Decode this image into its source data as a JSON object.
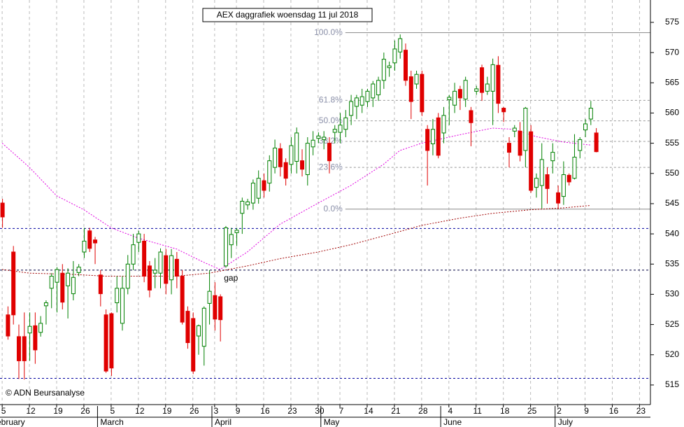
{
  "chart_data": {
    "type": "candlestick",
    "title": "AEX daggrafiek woensdag 11 jul 2018",
    "credit": "© ADN Beursanalyse",
    "annotation": {
      "label": "gap",
      "x": 42,
      "y": 532.6
    },
    "up_color": "#008000",
    "down_color": "#e00000",
    "ylim": [
      511.75,
      578.7
    ],
    "yticks": [
      515,
      520,
      525,
      530,
      535,
      540,
      545,
      550,
      555,
      560,
      565,
      570,
      575
    ],
    "xlim": [
      -0.4,
      119
    ],
    "xticks": [
      {
        "value": 0,
        "label": "5"
      },
      {
        "value": 5,
        "label": "12"
      },
      {
        "value": 10,
        "label": "19"
      },
      {
        "value": 15,
        "label": "26"
      },
      {
        "value": 20,
        "label": "5"
      },
      {
        "value": 25,
        "label": "12"
      },
      {
        "value": 30,
        "label": "19"
      },
      {
        "value": 35,
        "label": "26"
      },
      {
        "value": 39,
        "label": "3"
      },
      {
        "value": 43,
        "label": "9"
      },
      {
        "value": 48,
        "label": "16"
      },
      {
        "value": 53,
        "label": "23"
      },
      {
        "value": 58,
        "label": "30"
      },
      {
        "value": 62,
        "label": "7"
      },
      {
        "value": 67,
        "label": "14"
      },
      {
        "value": 72,
        "label": "21"
      },
      {
        "value": 77,
        "label": "28"
      },
      {
        "value": 82,
        "label": "4"
      },
      {
        "value": 87,
        "label": "11"
      },
      {
        "value": 92,
        "label": "18"
      },
      {
        "value": 97,
        "label": "25"
      },
      {
        "value": 102,
        "label": "2"
      },
      {
        "value": 107,
        "label": "9"
      },
      {
        "value": 112,
        "label": "16"
      },
      {
        "value": 117,
        "label": "23"
      }
    ],
    "months": [
      {
        "label": "February",
        "start": -2
      },
      {
        "label": "March",
        "start": 18
      },
      {
        "label": "April",
        "start": 39
      },
      {
        "label": "May",
        "start": 59
      },
      {
        "label": "June",
        "start": 81
      },
      {
        "label": "July",
        "start": 102
      }
    ],
    "grid": true,
    "levels": [
      {
        "value": 540.9,
        "color": "#0000a0"
      },
      {
        "value": 516.1,
        "color": "#0000a0"
      },
      {
        "value": 534,
        "color": "#000040"
      }
    ],
    "fib_start": 63,
    "fib": [
      {
        "label": "100.0%",
        "value": 573.3
      },
      {
        "label": "61.8%",
        "value": 562.1
      },
      {
        "label": "50.0%",
        "value": 558.7
      },
      {
        "label": "38.2%",
        "value": 555.3
      },
      {
        "label": "23.6%",
        "value": 551
      },
      {
        "label": "0.0%",
        "value": 544.1
      }
    ],
    "series": [
      {
        "color": "#e000e0",
        "x": [
          0,
          5,
          10,
          15,
          20,
          25,
          32,
          37,
          40,
          45,
          51,
          58,
          64,
          70,
          73,
          77,
          84,
          90,
          94,
          98,
          103,
          108
        ],
        "values": [
          555,
          551,
          546.3,
          544,
          541,
          539.3,
          537.5,
          535.3,
          534.1,
          537,
          541.6,
          545.1,
          548,
          551.5,
          553.8,
          555,
          556.4,
          557.5,
          557.3,
          556.1,
          555.2,
          554.7
        ]
      },
      {
        "color": "#a00000",
        "x": [
          0,
          5,
          13,
          19,
          25,
          32,
          38,
          45,
          51,
          58,
          64,
          71,
          77,
          84,
          90,
          97,
          103,
          108
        ],
        "values": [
          534.1,
          533.5,
          533.3,
          533,
          533,
          533,
          533.5,
          534.7,
          535.9,
          537,
          538.2,
          539.9,
          541.4,
          542.6,
          543.4,
          544,
          544.3,
          544.7
        ]
      }
    ],
    "ohlc": [
      [
        545.1,
        545.8,
        541,
        542.8
      ],
      [
        526.6,
        528,
        522.5,
        523.1
      ],
      [
        537,
        538,
        525,
        526.6
      ],
      [
        523,
        525,
        516,
        519
      ],
      [
        523,
        527,
        515.9,
        519
      ],
      [
        523.6,
        527,
        519,
        524.7
      ],
      [
        524.8,
        527,
        518.5,
        520.8
      ],
      [
        523.7,
        526.4,
        523,
        525.2
      ],
      [
        528.1,
        529,
        525,
        528.6
      ],
      [
        531,
        533.5,
        527.7,
        533
      ],
      [
        532,
        534.5,
        527,
        534.1
      ],
      [
        533.5,
        535,
        527.5,
        528.7
      ],
      [
        531.4,
        534.3,
        526,
        533.5
      ],
      [
        530.1,
        535.5,
        529,
        532.8
      ],
      [
        533.6,
        535,
        533,
        534.5
      ],
      [
        537,
        541,
        536,
        538.8
      ],
      [
        540.5,
        541,
        537,
        537.6
      ],
      [
        539,
        539.5,
        535,
        538.5
      ],
      [
        533.2,
        534,
        528,
        530.1
      ],
      [
        526.6,
        527.5,
        517,
        517.3
      ],
      [
        526.8,
        527,
        516.5,
        517.8
      ],
      [
        528.6,
        533,
        527,
        531
      ],
      [
        525.2,
        533,
        524,
        531
      ],
      [
        531,
        536.5,
        530,
        535
      ],
      [
        535,
        540,
        534,
        538.2
      ],
      [
        538.6,
        540.5,
        537,
        540
      ],
      [
        538.8,
        540,
        532,
        533
      ],
      [
        534.7,
        535.5,
        529.5,
        530.7
      ],
      [
        533.5,
        536,
        531,
        534
      ],
      [
        533.5,
        537.6,
        531,
        537
      ],
      [
        536.4,
        537.5,
        530,
        531.8
      ],
      [
        532.4,
        537.5,
        530,
        536.4
      ],
      [
        535.8,
        537,
        531,
        533
      ],
      [
        533,
        534,
        525,
        525.4
      ],
      [
        527.2,
        528,
        521,
        522
      ],
      [
        526,
        527,
        516.8,
        517.3
      ],
      [
        523.1,
        525,
        520,
        524.8
      ],
      [
        521.4,
        528,
        518.2,
        527.7
      ],
      [
        528.5,
        534,
        525,
        530.5
      ],
      [
        529.8,
        532,
        524,
        525.9
      ],
      [
        529.6,
        530,
        522.2,
        525.8
      ],
      [
        534.7,
        541.3,
        534.4,
        541
      ],
      [
        538.2,
        541,
        536,
        539.9
      ],
      [
        540.2,
        541,
        538,
        540.6
      ],
      [
        543.4,
        546,
        540,
        545.4
      ],
      [
        544.8,
        545.8,
        544,
        545.3
      ],
      [
        545.1,
        549,
        544,
        548.4
      ],
      [
        545.9,
        550.5,
        545,
        549.2
      ],
      [
        548.8,
        550,
        546,
        547.2
      ],
      [
        548.4,
        553,
        547,
        552.1
      ],
      [
        551,
        555.6,
        550,
        554.2
      ],
      [
        554.1,
        555,
        549.5,
        551.1
      ],
      [
        551.8,
        552.5,
        548,
        549.2
      ],
      [
        551.5,
        556,
        550,
        554.6
      ],
      [
        552,
        557.6,
        550,
        556.7
      ],
      [
        552.1,
        554,
        549.5,
        550.7
      ],
      [
        549.8,
        556,
        548,
        555
      ],
      [
        554.4,
        557,
        553,
        555.5
      ],
      [
        555.8,
        556.8,
        555,
        556.2
      ],
      [
        555.6,
        557,
        554,
        556
      ],
      [
        555,
        556,
        550,
        552.1
      ],
      [
        556.8,
        558,
        555,
        557.3
      ],
      [
        556.8,
        560,
        555,
        558
      ],
      [
        557.3,
        560.5,
        556,
        559.2
      ],
      [
        559.6,
        563,
        558,
        561.9
      ],
      [
        561.1,
        563,
        559,
        562.5
      ],
      [
        561.3,
        564,
        560,
        562.7
      ],
      [
        561.9,
        564,
        561,
        563.6
      ],
      [
        562.5,
        565.3,
        561,
        564.8
      ],
      [
        563,
        566,
        562,
        565.4
      ],
      [
        565.4,
        570,
        564,
        568.9
      ],
      [
        567.5,
        568.5,
        566,
        567.8
      ],
      [
        568.3,
        572,
        567,
        570.6
      ],
      [
        570.1,
        573,
        569,
        572.3
      ],
      [
        570.4,
        571.5,
        564.5,
        565.4
      ],
      [
        566,
        567,
        559,
        561.9
      ],
      [
        564.8,
        567,
        564,
        566.4
      ],
      [
        566.4,
        567,
        559.5,
        560.2
      ],
      [
        557.3,
        558,
        548,
        553.8
      ],
      [
        554.9,
        559,
        553,
        557.3
      ],
      [
        559.2,
        560,
        552.5,
        553
      ],
      [
        556.7,
        561,
        555,
        559.6
      ],
      [
        562.2,
        563,
        558,
        562.6
      ],
      [
        561.3,
        565,
        560,
        563.6
      ],
      [
        563.9,
        564.5,
        560.5,
        562.5
      ],
      [
        562.3,
        566,
        561,
        565.4
      ],
      [
        560.4,
        561,
        554.5,
        558.4
      ],
      [
        563.6,
        564.5,
        563,
        564
      ],
      [
        567.5,
        568,
        562,
        563.4
      ],
      [
        563.6,
        566,
        563,
        564.8
      ],
      [
        563.6,
        569,
        558,
        568
      ],
      [
        567.9,
        569.4,
        560,
        561.6
      ],
      [
        560.8,
        561,
        558.5,
        560.2
      ],
      [
        555,
        556,
        551,
        553.5
      ],
      [
        557,
        558,
        556,
        557.5
      ],
      [
        557,
        558.5,
        552,
        553
      ],
      [
        553.8,
        561,
        551,
        560.8
      ],
      [
        556.9,
        558,
        546.8,
        547.2
      ],
      [
        547.7,
        550,
        546,
        549.2
      ],
      [
        548,
        555,
        544.2,
        552.3
      ],
      [
        549.8,
        551,
        545,
        547.5
      ],
      [
        552.1,
        555,
        550,
        553.5
      ],
      [
        546.8,
        548,
        544.1,
        545.1
      ],
      [
        546.2,
        552,
        544.8,
        549.8
      ],
      [
        549.7,
        550,
        548,
        548.6
      ],
      [
        549.2,
        556.5,
        549,
        552.7
      ],
      [
        553.8,
        556,
        552.5,
        555.6
      ],
      [
        557.2,
        559,
        556,
        558.2
      ],
      [
        559,
        562,
        558,
        560.8
      ],
      [
        556.7,
        557.5,
        553.5,
        553.6
      ]
    ]
  }
}
